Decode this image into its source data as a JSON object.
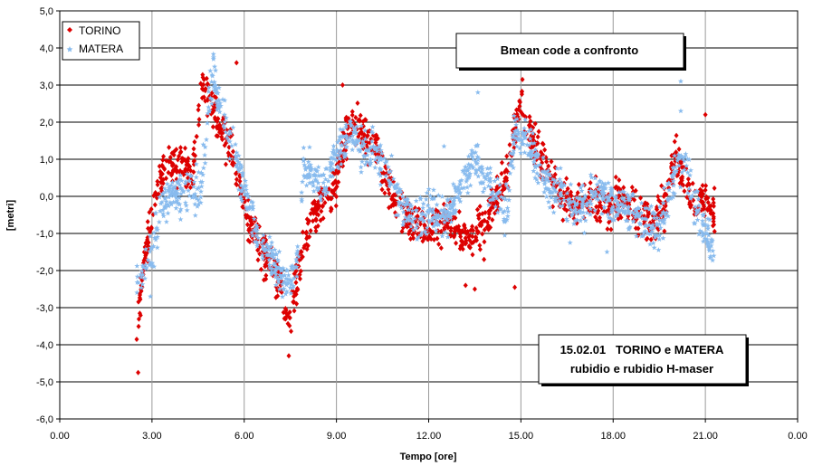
{
  "chart_data": {
    "type": "scatter",
    "title": "Bmean code a confronto",
    "annotation": [
      "15.02.01   TORINO e MATERA",
      "rubidio e rubidio H-maser"
    ],
    "xlabel": "Tempo [ore]",
    "ylabel": "[metri]",
    "xlim": [
      0,
      24
    ],
    "ylim": [
      -6,
      5
    ],
    "x_ticks": [
      "0.00",
      "3.00",
      "6.00",
      "9.00",
      "12.00",
      "15.00",
      "18.00",
      "21.00",
      "0.00"
    ],
    "y_ticks": [
      "5,0",
      "4,0",
      "3,0",
      "2,0",
      "1,0",
      "0,0",
      "-1,0",
      "-2,0",
      "-3,0",
      "-4,0",
      "-5,0",
      "-6,0"
    ],
    "grid": "vertical and horizontal",
    "legend_position": "top-left",
    "series": [
      {
        "name": "TORINO",
        "color": "#dd0000",
        "marker": "diamond",
        "trend": [
          [
            2.5,
            -3.8
          ],
          [
            2.7,
            -2.0
          ],
          [
            2.9,
            -1.0
          ],
          [
            3.2,
            0.3
          ],
          [
            3.5,
            0.9
          ],
          [
            3.8,
            0.8
          ],
          [
            4.0,
            0.9
          ],
          [
            4.3,
            0.5
          ],
          [
            4.6,
            3.0
          ],
          [
            4.9,
            2.5
          ],
          [
            5.2,
            1.8
          ],
          [
            5.6,
            1.2
          ],
          [
            6.0,
            -0.2
          ],
          [
            6.4,
            -1.2
          ],
          [
            6.8,
            -1.8
          ],
          [
            7.2,
            -2.4
          ],
          [
            7.4,
            -3.6
          ],
          [
            7.6,
            -2.8
          ],
          [
            7.9,
            -1.5
          ],
          [
            8.2,
            -0.6
          ],
          [
            8.5,
            -0.2
          ],
          [
            8.8,
            0.0
          ],
          [
            9.1,
            0.8
          ],
          [
            9.4,
            2.0
          ],
          [
            9.8,
            1.8
          ],
          [
            10.2,
            1.3
          ],
          [
            10.6,
            0.5
          ],
          [
            11.0,
            -0.3
          ],
          [
            11.5,
            -0.6
          ],
          [
            12.0,
            -0.9
          ],
          [
            12.5,
            -0.6
          ],
          [
            13.0,
            -1.0
          ],
          [
            13.5,
            -1.2
          ],
          [
            14.0,
            -0.3
          ],
          [
            14.5,
            0.5
          ],
          [
            15.0,
            2.6
          ],
          [
            15.4,
            1.5
          ],
          [
            15.8,
            0.8
          ],
          [
            16.3,
            0.0
          ],
          [
            16.8,
            -0.3
          ],
          [
            17.3,
            -0.1
          ],
          [
            17.8,
            -0.4
          ],
          [
            18.3,
            0.0
          ],
          [
            18.8,
            -0.5
          ],
          [
            19.3,
            -0.7
          ],
          [
            19.7,
            -0.2
          ],
          [
            20.0,
            1.2
          ],
          [
            20.3,
            0.5
          ],
          [
            20.6,
            -0.2
          ],
          [
            21.0,
            0.0
          ],
          [
            21.3,
            -0.5
          ]
        ],
        "outliers": [
          [
            2.55,
            -4.75
          ],
          [
            5.75,
            3.6
          ],
          [
            7.45,
            -4.3
          ],
          [
            9.2,
            3.0
          ],
          [
            13.2,
            -2.4
          ],
          [
            13.5,
            -2.5
          ],
          [
            14.8,
            -2.45
          ],
          [
            15.05,
            3.15
          ],
          [
            21.0,
            2.2
          ],
          [
            13.8,
            -1.7
          ]
        ]
      },
      {
        "name": "MATERA",
        "color": "#88bbee",
        "marker": "star",
        "trend": [
          [
            2.5,
            -2.3
          ],
          [
            2.8,
            -1.9
          ],
          [
            3.0,
            -1.6
          ],
          [
            3.3,
            -0.3
          ],
          [
            3.6,
            0.0
          ],
          [
            4.0,
            0.1
          ],
          [
            4.3,
            0.1
          ],
          [
            4.6,
            0.2
          ],
          [
            4.85,
            2.4
          ],
          [
            5.0,
            3.5
          ],
          [
            5.2,
            2.3
          ],
          [
            5.6,
            1.5
          ],
          [
            6.0,
            0.2
          ],
          [
            6.4,
            -1.0
          ],
          [
            6.8,
            -1.6
          ],
          [
            7.2,
            -2.1
          ],
          [
            7.5,
            -2.5
          ],
          [
            7.8,
            -1.4
          ],
          [
            7.9,
            0.9
          ],
          [
            8.2,
            0.5
          ],
          [
            8.6,
            0.2
          ],
          [
            9.0,
            1.2
          ],
          [
            9.4,
            1.6
          ],
          [
            9.8,
            1.3
          ],
          [
            10.2,
            1.2
          ],
          [
            10.6,
            0.8
          ],
          [
            11.0,
            0.0
          ],
          [
            11.5,
            -0.7
          ],
          [
            12.0,
            -0.4
          ],
          [
            12.5,
            -0.6
          ],
          [
            13.0,
            0.0
          ],
          [
            13.5,
            1.0
          ],
          [
            13.8,
            0.5
          ],
          [
            14.2,
            0.0
          ],
          [
            14.5,
            -0.5
          ],
          [
            14.8,
            1.8
          ],
          [
            15.2,
            1.5
          ],
          [
            15.6,
            0.8
          ],
          [
            16.0,
            0.2
          ],
          [
            16.5,
            -0.2
          ],
          [
            17.0,
            -0.3
          ],
          [
            17.5,
            0.2
          ],
          [
            18.0,
            -0.3
          ],
          [
            18.5,
            -0.4
          ],
          [
            19.0,
            -0.7
          ],
          [
            19.5,
            -0.9
          ],
          [
            20.0,
            0.6
          ],
          [
            20.3,
            1.1
          ],
          [
            20.6,
            0.0
          ],
          [
            21.0,
            -0.8
          ],
          [
            21.3,
            -1.6
          ]
        ],
        "outliers": [
          [
            5.0,
            3.7
          ],
          [
            13.6,
            2.8
          ],
          [
            20.2,
            3.1
          ],
          [
            20.2,
            2.3
          ],
          [
            2.95,
            -2.7
          ],
          [
            16.6,
            -1.25
          ],
          [
            17.8,
            -1.5
          ],
          [
            12.5,
            1.35
          ]
        ]
      }
    ]
  }
}
